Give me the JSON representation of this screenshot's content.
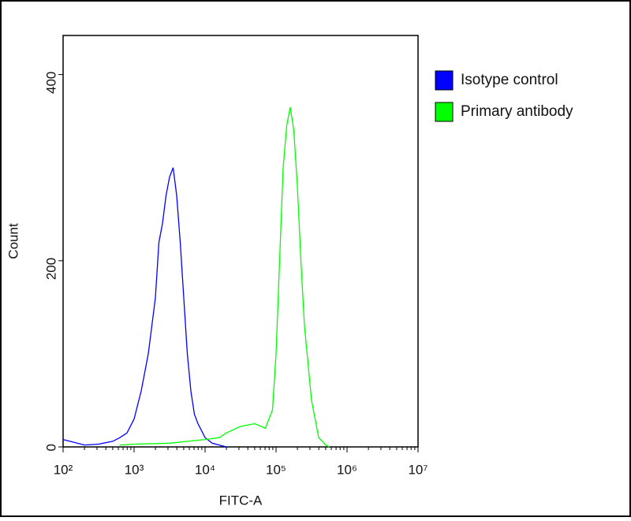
{
  "chart_data": {
    "type": "line",
    "x_label": "FITC-A",
    "y_label": "Count",
    "xscale": "log",
    "xlim": [
      100,
      10000000
    ],
    "xticks": [
      {
        "value": 100,
        "label": "10²"
      },
      {
        "value": 1000,
        "label": "10³"
      },
      {
        "value": 10000,
        "label": "10⁴"
      },
      {
        "value": 100000,
        "label": "10⁵"
      },
      {
        "value": 1000000,
        "label": "10⁶"
      },
      {
        "value": 10000000,
        "label": "10⁷"
      }
    ],
    "ylim": [
      0,
      442
    ],
    "yticks": [
      0,
      200,
      400
    ],
    "legend": "right",
    "series": [
      {
        "name": "Isotype control",
        "color": "#0000ff",
        "x": [
          100,
          200,
          316,
          500,
          631,
          794,
          1000,
          1259,
          1585,
          1995,
          2239,
          2512,
          2818,
          3162,
          3548,
          3981,
          4467,
          5012,
          5623,
          6310,
          7079,
          7943,
          10000,
          12589,
          15849,
          19953
        ],
        "values": [
          8,
          2,
          3,
          6,
          10,
          15,
          30,
          60,
          100,
          160,
          220,
          240,
          270,
          290,
          300,
          270,
          220,
          160,
          100,
          60,
          35,
          25,
          10,
          4,
          2,
          0
        ]
      },
      {
        "name": "Primary antibody",
        "color": "#00ff00",
        "x": [
          631,
          1000,
          3162,
          10000,
          15849,
          19953,
          31623,
          50119,
          70795,
          89125,
          100000,
          112202,
          125893,
          141254,
          158489,
          177828,
          199526,
          223872,
          251189,
          316228,
          398107,
          501187,
          562341
        ],
        "values": [
          2,
          3,
          4,
          8,
          10,
          15,
          22,
          25,
          20,
          40,
          100,
          200,
          300,
          345,
          365,
          340,
          280,
          200,
          130,
          50,
          10,
          2,
          0
        ]
      }
    ]
  }
}
